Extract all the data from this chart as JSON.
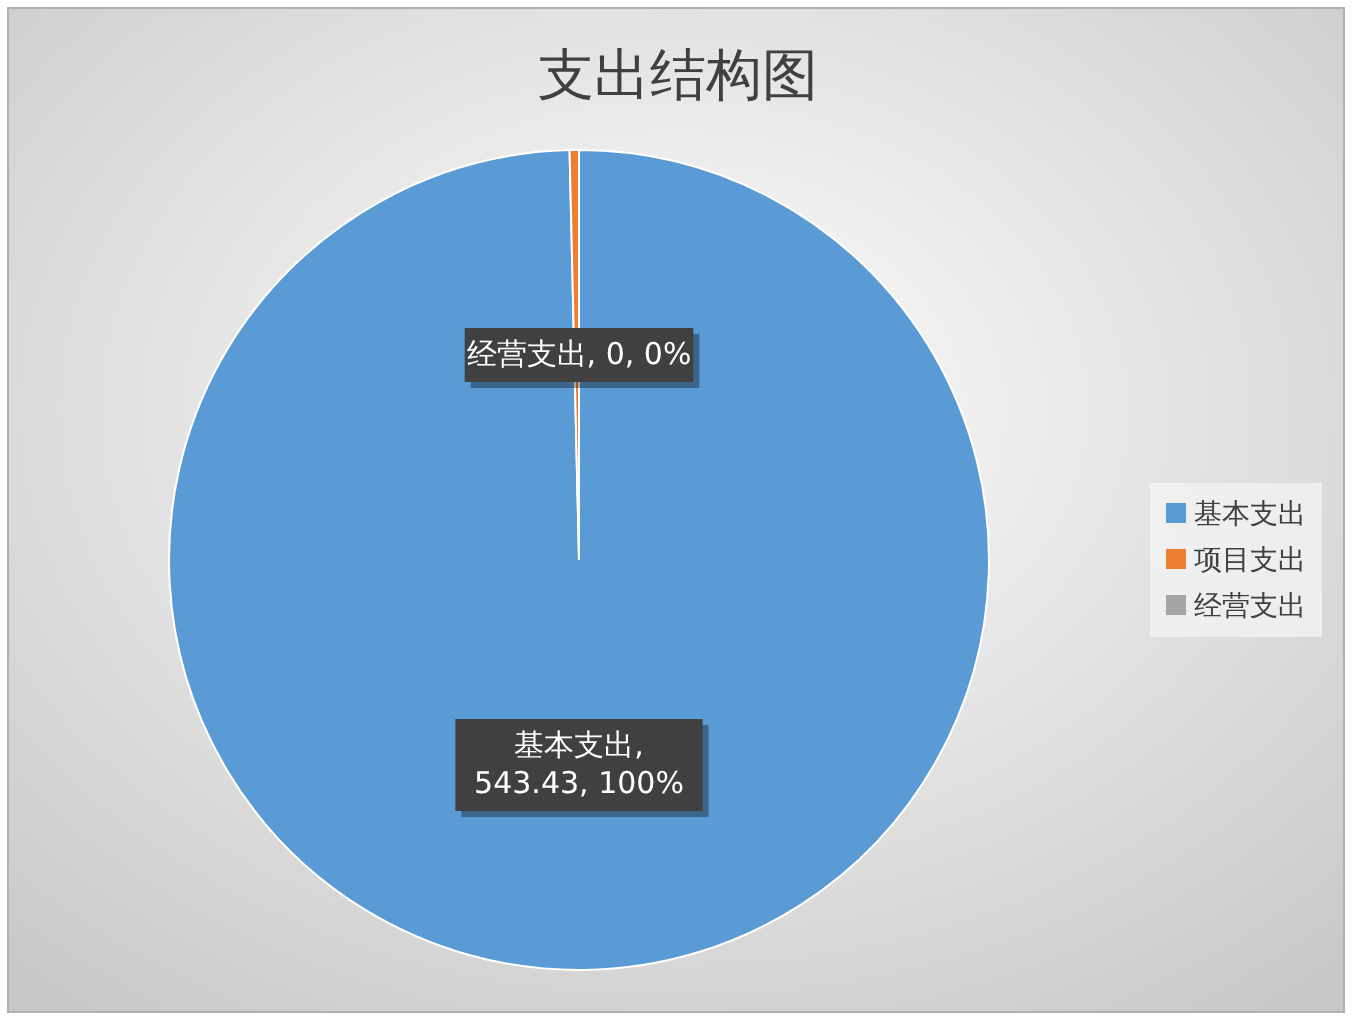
{
  "chart_data": {
    "type": "pie",
    "title": "支出结构图",
    "categories": [
      "基本支出",
      "项目支出",
      "经营支出"
    ],
    "values": [
      543.43,
      2,
      0
    ],
    "colors": [
      "#5b9bd5",
      "#ed7d31",
      "#a5a5a5"
    ],
    "value_labels": [
      "基本支出, 543.43, 100%",
      null,
      "经营支出, 0, 0%"
    ],
    "legend": "right"
  }
}
